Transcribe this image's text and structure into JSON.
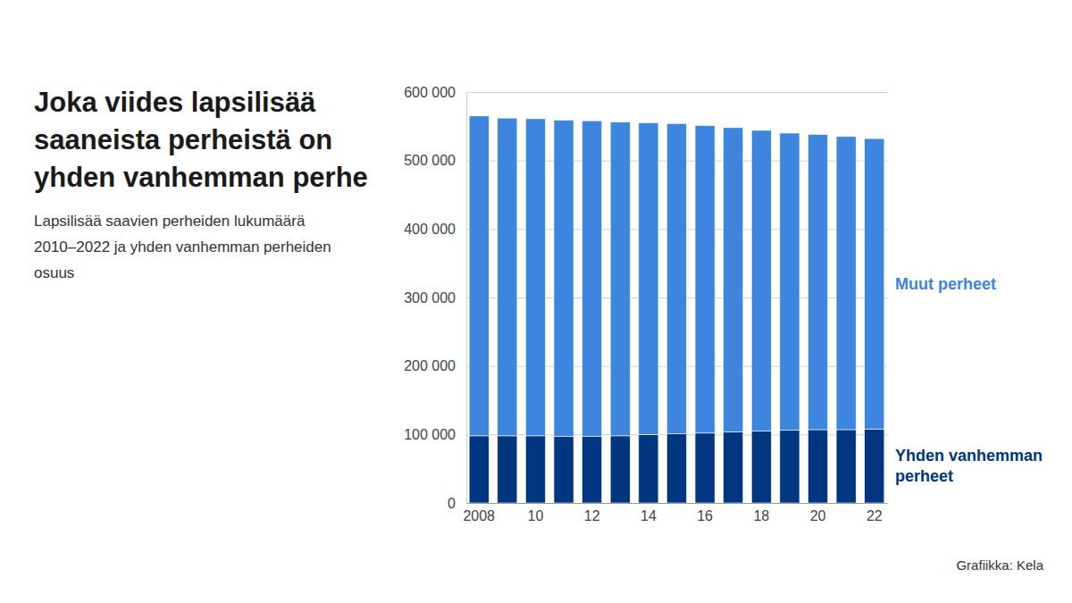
{
  "chart_data": {
    "type": "bar",
    "stacked": true,
    "grid": true,
    "title": "Joka viides lapsilisää saaneista perheistä on yhden vanhemman perhe",
    "subtitle": "Lapsilisää saavien perheiden lukumäärä 2010–2022 ja yhden vanhemman perheiden osuus",
    "source": "Grafiikka: Kela",
    "categories": [
      "2008",
      null,
      "10",
      null,
      "12",
      null,
      "14",
      null,
      "16",
      null,
      "18",
      null,
      "20",
      null,
      "22"
    ],
    "series": [
      {
        "name": "Yhden vanhemman perheet",
        "color": "#003580",
        "values": [
          98000,
          98000,
          98000,
          97000,
          97000,
          98000,
          100000,
          101000,
          102000,
          104000,
          105000,
          106000,
          107000,
          107000,
          108000
        ]
      },
      {
        "name": "Muut perheet",
        "color": "#3d85de",
        "values": [
          467000,
          464000,
          463000,
          462000,
          461000,
          458000,
          455000,
          453000,
          449000,
          444000,
          439000,
          434000,
          431000,
          428000,
          424000
        ]
      }
    ],
    "ylim": [
      0,
      600000
    ],
    "yticks": [
      0,
      {
        "value": 100000,
        "label": "100 000"
      },
      {
        "value": 200000,
        "label": "200 000"
      },
      {
        "value": 300000,
        "label": "300 000"
      },
      {
        "value": 400000,
        "label": "400 000"
      },
      {
        "value": 500000,
        "label": "500 000"
      },
      {
        "value": 600000,
        "label": "600 000"
      }
    ]
  }
}
